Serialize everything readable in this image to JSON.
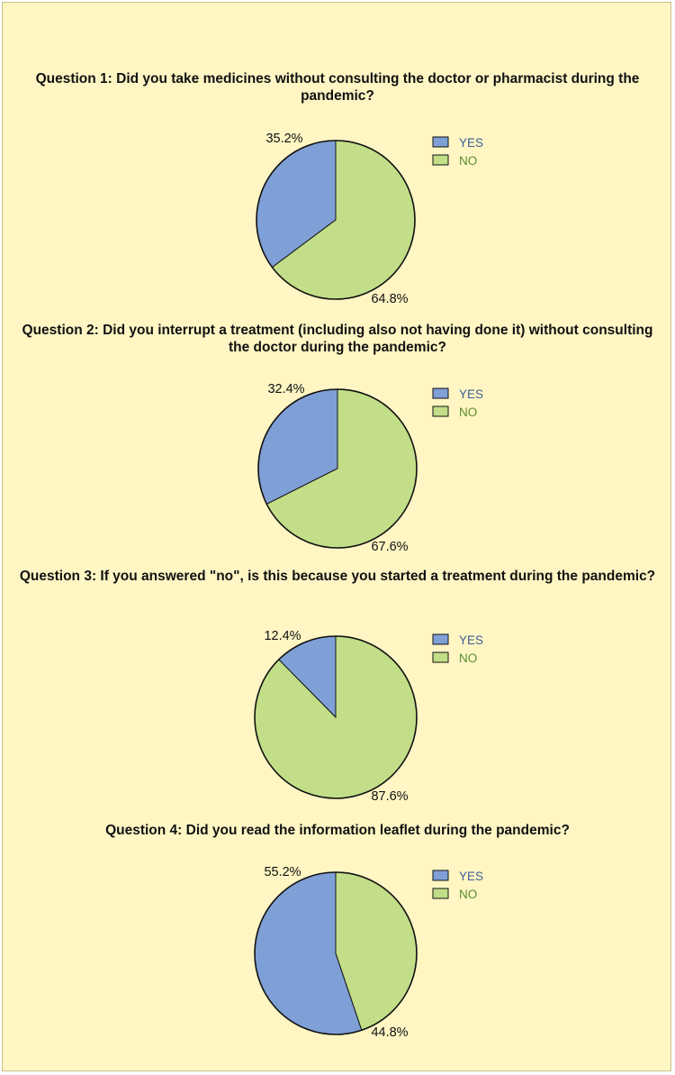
{
  "colors": {
    "yes": "#7fa0d6",
    "no": "#c2de88",
    "background": "#fff6c4"
  },
  "chart_data": [
    {
      "type": "pie",
      "title": "Question 1: Did you take medicines without consulting the doctor or pharmacist during the pandemic?",
      "categories": [
        "YES",
        "NO"
      ],
      "values": [
        35.2,
        64.8
      ],
      "labels": [
        "35.2%",
        "64.8%"
      ],
      "legend": [
        "YES",
        "NO"
      ],
      "legend_position": "right"
    },
    {
      "type": "pie",
      "title": "Question 2: Did you interrupt a treatment (including also not having done it) without consulting the doctor during the pandemic?",
      "categories": [
        "YES",
        "NO"
      ],
      "values": [
        32.4,
        67.6
      ],
      "labels": [
        "32.4%",
        "67.6%"
      ],
      "legend": [
        "YES",
        "NO"
      ],
      "legend_position": "right"
    },
    {
      "type": "pie",
      "title": "Question 3: If you answered \"no\", is this because you started a treatment during the pandemic?",
      "categories": [
        "YES",
        "NO"
      ],
      "values": [
        12.4,
        87.6
      ],
      "labels": [
        "12.4%",
        "87.6%"
      ],
      "legend": [
        "YES",
        "NO"
      ],
      "legend_position": "right"
    },
    {
      "type": "pie",
      "title": "Question 4: Did you read the information leaflet during the pandemic?",
      "categories": [
        "YES",
        "NO"
      ],
      "values": [
        55.2,
        44.8
      ],
      "labels": [
        "55.2%",
        "44.8%"
      ],
      "legend": [
        "YES",
        "NO"
      ],
      "legend_position": "right"
    }
  ]
}
